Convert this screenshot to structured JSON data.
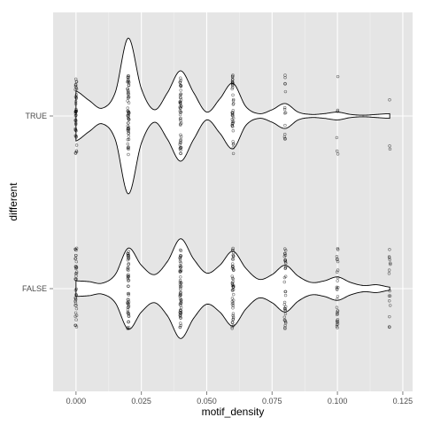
{
  "chart_data": {
    "type": "violin",
    "title": "",
    "xlabel": "motif_density",
    "ylabel": "different",
    "xlim": [
      -0.00875,
      0.12875
    ],
    "x_ticks": [
      0.0,
      0.025,
      0.05,
      0.075,
      0.1,
      0.125
    ],
    "x_tick_labels": [
      "0.000",
      "0.025",
      "0.050",
      "0.075",
      "0.100",
      "0.125"
    ],
    "categories": [
      "FALSE",
      "TRUE"
    ],
    "grid": true,
    "orientation": "horizontal",
    "colors": {
      "panel_bg": "#e5e5e5",
      "grid_major": "#ffffff",
      "grid_minor": "#f2f2f2",
      "violin_fill": "#ffffff",
      "violin_stroke": "#000000",
      "point": "#000000"
    },
    "series": [
      {
        "category": "TRUE",
        "density_x": [
          0.0,
          0.005,
          0.01,
          0.015,
          0.02,
          0.025,
          0.03,
          0.035,
          0.04,
          0.045,
          0.05,
          0.055,
          0.06,
          0.065,
          0.07,
          0.075,
          0.08,
          0.085,
          0.09,
          0.095,
          0.1,
          0.105,
          0.11,
          0.115,
          0.12
        ],
        "half_width": [
          0.32,
          0.2,
          0.1,
          0.3,
          1.0,
          0.35,
          0.08,
          0.3,
          0.58,
          0.3,
          0.05,
          0.22,
          0.42,
          0.12,
          0.03,
          0.08,
          0.16,
          0.05,
          0.02,
          0.03,
          0.05,
          0.02,
          0.01,
          0.02,
          0.03
        ],
        "points": [
          {
            "x": 0.0,
            "n": 42
          },
          {
            "x": 0.02,
            "n": 60
          },
          {
            "x": 0.04,
            "n": 50
          },
          {
            "x": 0.06,
            "n": 40
          },
          {
            "x": 0.08,
            "n": 14
          },
          {
            "x": 0.1,
            "n": 6
          },
          {
            "x": 0.12,
            "n": 3
          }
        ]
      },
      {
        "category": "FALSE",
        "density_x": [
          0.0,
          0.005,
          0.01,
          0.015,
          0.02,
          0.025,
          0.03,
          0.035,
          0.04,
          0.045,
          0.05,
          0.055,
          0.06,
          0.065,
          0.07,
          0.075,
          0.08,
          0.085,
          0.09,
          0.095,
          0.1,
          0.105,
          0.11,
          0.115,
          0.12
        ],
        "half_width": [
          0.1,
          0.09,
          0.07,
          0.18,
          0.52,
          0.3,
          0.18,
          0.35,
          0.64,
          0.38,
          0.2,
          0.3,
          0.48,
          0.26,
          0.12,
          0.18,
          0.3,
          0.16,
          0.08,
          0.1,
          0.15,
          0.08,
          0.04,
          0.05,
          0.02
        ],
        "points": [
          {
            "x": 0.0,
            "n": 40
          },
          {
            "x": 0.02,
            "n": 52
          },
          {
            "x": 0.04,
            "n": 60
          },
          {
            "x": 0.06,
            "n": 50
          },
          {
            "x": 0.08,
            "n": 36
          },
          {
            "x": 0.1,
            "n": 30
          },
          {
            "x": 0.12,
            "n": 16
          }
        ]
      }
    ]
  }
}
